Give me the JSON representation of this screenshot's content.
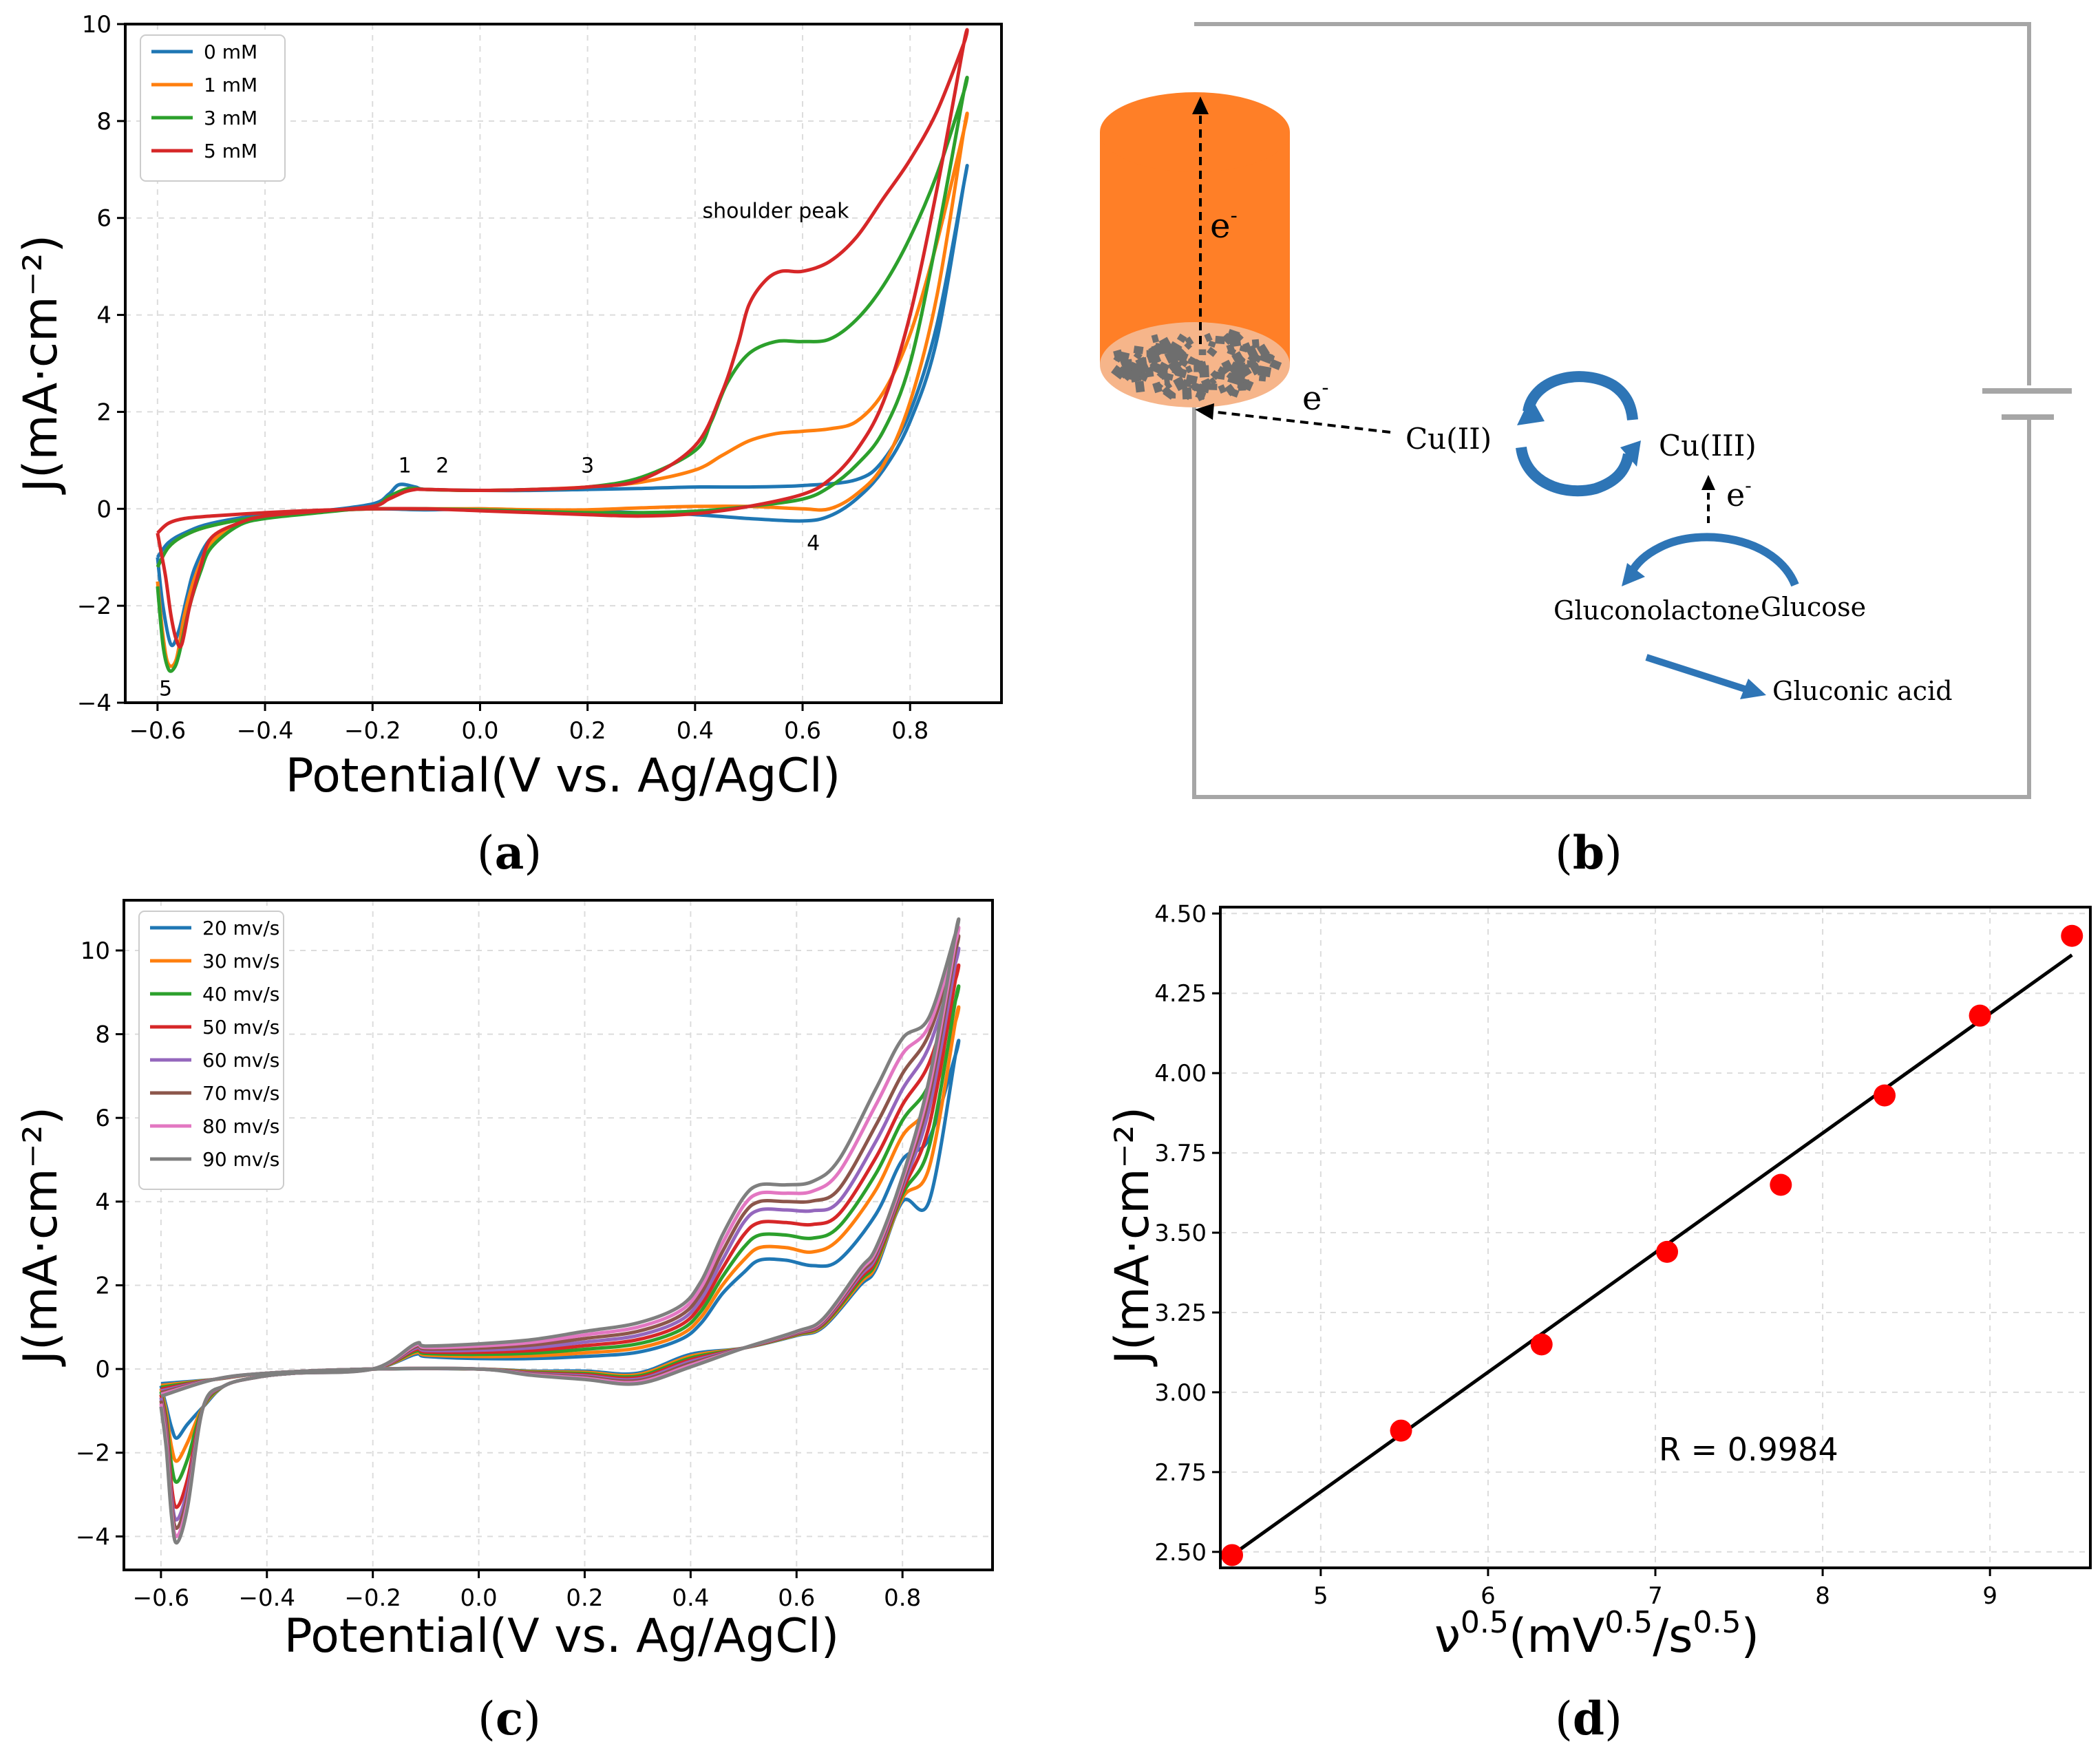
{
  "panel_labels": {
    "a": {
      "open": "(",
      "letter": "a",
      "close": ")"
    },
    "b": {
      "open": "(",
      "letter": "b",
      "close": ")"
    },
    "c": {
      "open": "(",
      "letter": "c",
      "close": ")"
    },
    "d": {
      "open": "(",
      "letter": "d",
      "close": ")"
    }
  },
  "chart_data": [
    {
      "id": "a",
      "type": "line",
      "xlabel": "Potential(V vs. Ag/AgCl)",
      "ylabel": "J(mA·cm⁻²)",
      "xlim": [
        -0.66,
        0.97
      ],
      "ylim": [
        -4.0,
        10.0
      ],
      "xticks": [
        -0.6,
        -0.4,
        -0.2,
        0.0,
        0.2,
        0.4,
        0.6,
        0.8
      ],
      "xtick_labels": [
        "−0.6",
        "−0.4",
        "−0.2",
        "0.0",
        "0.2",
        "0.4",
        "0.6",
        "0.8"
      ],
      "yticks": [
        -4,
        -2,
        0,
        2,
        4,
        6,
        8,
        10
      ],
      "ytick_labels": [
        "−4",
        "−2",
        "0",
        "2",
        "4",
        "6",
        "8",
        "10"
      ],
      "grid": true,
      "legend": "top-left",
      "series": [
        {
          "name": "0 mM",
          "color": "#1f77b4",
          "x": [
            -0.6,
            -0.59,
            -0.575,
            -0.56,
            -0.545,
            -0.53,
            -0.5,
            -0.45,
            -0.4,
            -0.3,
            -0.2,
            -0.17,
            -0.15,
            -0.12,
            -0.1,
            0.0,
            0.1,
            0.2,
            0.3,
            0.4,
            0.5,
            0.6,
            0.7,
            0.75,
            0.8,
            0.85,
            0.9,
            0.9,
            0.85,
            0.8,
            0.75,
            0.7,
            0.65,
            0.6,
            0.5,
            0.4,
            0.3,
            0.2,
            0.1,
            0.0,
            -0.1,
            -0.2,
            -0.3,
            -0.4,
            -0.5,
            -0.55,
            -0.58,
            -0.6
          ],
          "y": [
            -1.0,
            -2.0,
            -2.8,
            -2.5,
            -1.8,
            -1.2,
            -0.6,
            -0.3,
            -0.15,
            -0.05,
            0.1,
            0.3,
            0.5,
            0.45,
            0.4,
            0.38,
            0.38,
            0.4,
            0.42,
            0.45,
            0.45,
            0.48,
            0.6,
            1.0,
            2.0,
            3.8,
            6.7,
            6.7,
            3.5,
            1.8,
            0.8,
            0.2,
            -0.15,
            -0.25,
            -0.2,
            -0.12,
            -0.08,
            -0.05,
            -0.03,
            0.0,
            -0.02,
            0.0,
            -0.05,
            -0.12,
            -0.3,
            -0.5,
            -0.7,
            -1.0
          ]
        },
        {
          "name": "1 mM",
          "color": "#ff7f0e",
          "x": [
            -0.6,
            -0.59,
            -0.58,
            -0.565,
            -0.55,
            -0.53,
            -0.5,
            -0.45,
            -0.4,
            -0.3,
            -0.2,
            -0.17,
            -0.14,
            -0.12,
            -0.1,
            0.0,
            0.1,
            0.2,
            0.3,
            0.4,
            0.45,
            0.5,
            0.55,
            0.6,
            0.65,
            0.7,
            0.75,
            0.8,
            0.85,
            0.9,
            0.9,
            0.85,
            0.8,
            0.75,
            0.7,
            0.65,
            0.6,
            0.5,
            0.4,
            0.3,
            0.2,
            0.1,
            0.0,
            -0.1,
            -0.2,
            -0.3,
            -0.4,
            -0.5,
            -0.55,
            -0.58,
            -0.6
          ],
          "y": [
            -1.5,
            -2.6,
            -3.2,
            -3.1,
            -2.2,
            -1.4,
            -0.7,
            -0.3,
            -0.15,
            -0.05,
            0.05,
            0.25,
            0.4,
            0.42,
            0.4,
            0.38,
            0.4,
            0.45,
            0.55,
            0.8,
            1.1,
            1.4,
            1.55,
            1.6,
            1.65,
            1.8,
            2.4,
            3.6,
            5.5,
            7.8,
            7.8,
            4.4,
            2.2,
            0.9,
            0.3,
            0.0,
            0.0,
            0.05,
            0.05,
            0.02,
            -0.02,
            -0.02,
            0.0,
            0.0,
            0.0,
            -0.05,
            -0.15,
            -0.35,
            -0.55,
            -0.8,
            -1.2
          ]
        },
        {
          "name": "3 mM",
          "color": "#2ca02c",
          "x": [
            -0.6,
            -0.59,
            -0.58,
            -0.57,
            -0.56,
            -0.54,
            -0.52,
            -0.5,
            -0.45,
            -0.4,
            -0.3,
            -0.2,
            -0.17,
            -0.14,
            -0.12,
            -0.1,
            0.0,
            0.1,
            0.2,
            0.3,
            0.4,
            0.43,
            0.46,
            0.5,
            0.55,
            0.6,
            0.65,
            0.7,
            0.75,
            0.8,
            0.85,
            0.9,
            0.9,
            0.85,
            0.8,
            0.75,
            0.7,
            0.65,
            0.6,
            0.5,
            0.4,
            0.3,
            0.2,
            0.1,
            0.0,
            -0.1,
            -0.2,
            -0.3,
            -0.4,
            -0.5,
            -0.55,
            -0.58,
            -0.6
          ],
          "y": [
            -1.6,
            -2.8,
            -3.3,
            -3.3,
            -3.0,
            -2.0,
            -1.3,
            -0.8,
            -0.35,
            -0.2,
            -0.08,
            0.05,
            0.25,
            0.4,
            0.42,
            0.4,
            0.38,
            0.4,
            0.45,
            0.65,
            1.2,
            1.8,
            2.6,
            3.2,
            3.45,
            3.45,
            3.5,
            3.9,
            4.6,
            5.6,
            6.9,
            8.6,
            8.6,
            5.6,
            3.0,
            1.6,
            0.9,
            0.45,
            0.2,
            0.05,
            -0.05,
            -0.08,
            -0.08,
            -0.05,
            -0.02,
            0.0,
            0.0,
            -0.05,
            -0.15,
            -0.35,
            -0.55,
            -0.8,
            -1.2
          ]
        },
        {
          "name": "5 mM",
          "color": "#d62728",
          "x": [
            -0.6,
            -0.595,
            -0.585,
            -0.575,
            -0.565,
            -0.555,
            -0.54,
            -0.52,
            -0.5,
            -0.45,
            -0.4,
            -0.3,
            -0.2,
            -0.17,
            -0.14,
            -0.12,
            -0.1,
            0.0,
            0.1,
            0.2,
            0.3,
            0.4,
            0.45,
            0.48,
            0.5,
            0.53,
            0.56,
            0.6,
            0.65,
            0.7,
            0.75,
            0.8,
            0.85,
            0.9,
            0.9,
            0.85,
            0.8,
            0.75,
            0.7,
            0.65,
            0.6,
            0.5,
            0.4,
            0.3,
            0.2,
            0.1,
            0.0,
            -0.1,
            -0.2,
            -0.3,
            -0.4,
            -0.5,
            -0.55,
            -0.58,
            -0.6
          ],
          "y": [
            -0.5,
            -0.8,
            -1.4,
            -2.2,
            -2.7,
            -2.8,
            -2.0,
            -1.2,
            -0.6,
            -0.3,
            -0.15,
            -0.05,
            0.05,
            0.2,
            0.35,
            0.4,
            0.4,
            0.38,
            0.4,
            0.45,
            0.6,
            1.3,
            2.4,
            3.4,
            4.2,
            4.7,
            4.9,
            4.9,
            5.1,
            5.6,
            6.4,
            7.2,
            8.2,
            9.6,
            9.6,
            6.6,
            4.0,
            2.2,
            1.2,
            0.6,
            0.3,
            0.05,
            -0.1,
            -0.15,
            -0.12,
            -0.08,
            -0.04,
            0.0,
            0.0,
            -0.03,
            -0.08,
            -0.15,
            -0.2,
            -0.3,
            -0.5
          ]
        }
      ],
      "annotations": [
        {
          "text": "shoulder peak",
          "x": 0.55,
          "y": 6.0
        },
        {
          "text": "1",
          "x": -0.14,
          "y": 0.75
        },
        {
          "text": "2",
          "x": -0.07,
          "y": 0.75
        },
        {
          "text": "3",
          "x": 0.2,
          "y": 0.75
        },
        {
          "text": "4",
          "x": 0.62,
          "y": -0.85
        },
        {
          "text": "5",
          "x": -0.585,
          "y": -3.85
        }
      ]
    },
    {
      "id": "c",
      "type": "line",
      "xlabel": "Potential(V vs. Ag/AgCl)",
      "ylabel": "J(mA·cm⁻²)",
      "xlim": [
        -0.67,
        0.97
      ],
      "ylim": [
        -4.8,
        11.2
      ],
      "xticks": [
        -0.6,
        -0.4,
        -0.2,
        0.0,
        0.2,
        0.4,
        0.6,
        0.8
      ],
      "xtick_labels": [
        "−0.6",
        "−0.4",
        "−0.2",
        "0.0",
        "0.2",
        "0.4",
        "0.6",
        "0.8"
      ],
      "yticks": [
        -4,
        -2,
        0,
        2,
        4,
        6,
        8,
        10
      ],
      "ytick_labels": [
        "−4",
        "−2",
        "0",
        "2",
        "4",
        "6",
        "8",
        "10"
      ],
      "grid": true,
      "legend": "top-left",
      "series": [
        {
          "name": "20 mv/s",
          "color": "#1f77b4",
          "peak": 2.6,
          "trough": -1.65,
          "top": 7.5,
          "ret_peak": 2.5
        },
        {
          "name": "30 mv/s",
          "color": "#ff7f0e",
          "peak": 2.9,
          "trough": -2.2,
          "top": 8.3,
          "ret_peak": 3.0
        },
        {
          "name": "40 mv/s",
          "color": "#2ca02c",
          "peak": 3.2,
          "trough": -2.7,
          "top": 8.8,
          "ret_peak": 3.3
        },
        {
          "name": "50 mv/s",
          "color": "#d62728",
          "peak": 3.5,
          "trough": -3.3,
          "top": 9.3,
          "ret_peak": 3.6
        },
        {
          "name": "60 mv/s",
          "color": "#9467bd",
          "peak": 3.8,
          "trough": -3.6,
          "top": 9.7,
          "ret_peak": 3.9
        },
        {
          "name": "70 mv/s",
          "color": "#8c564b",
          "peak": 4.0,
          "trough": -3.8,
          "top": 10.0,
          "ret_peak": 4.2
        },
        {
          "name": "80 mv/s",
          "color": "#e377c2",
          "peak": 4.2,
          "trough": -4.0,
          "top": 10.2,
          "ret_peak": 4.6
        },
        {
          "name": "90 mv/s",
          "color": "#7f7f7f",
          "peak": 4.4,
          "trough": -4.15,
          "top": 10.4,
          "ret_peak": 4.9
        }
      ]
    },
    {
      "id": "d",
      "type": "scatter",
      "xlabel": "ν⁰⋅⁵(mV⁰⋅⁵/s⁰⋅⁵)",
      "xlabel_parts": {
        "base": "ν",
        "exp": "0.5",
        "open": "(mV",
        "exp2": "0.5",
        "mid": "/s",
        "exp3": "0.5",
        "close": ")"
      },
      "ylabel": "J(mA·cm⁻²)",
      "xlim": [
        4.4,
        9.6
      ],
      "ylim": [
        2.45,
        4.52
      ],
      "xticks": [
        5,
        6,
        7,
        8,
        9
      ],
      "xtick_labels": [
        "5",
        "6",
        "7",
        "8",
        "9"
      ],
      "yticks": [
        2.5,
        2.75,
        3.0,
        3.25,
        3.5,
        3.75,
        4.0,
        4.25,
        4.5
      ],
      "ytick_labels": [
        "2.50",
        "2.75",
        "3.00",
        "3.25",
        "3.50",
        "3.75",
        "4.00",
        "4.25",
        "4.50"
      ],
      "grid": true,
      "points": {
        "x": [
          4.47,
          5.48,
          6.32,
          7.07,
          7.75,
          8.37,
          8.94,
          9.49
        ],
        "y": [
          2.49,
          2.88,
          3.15,
          3.44,
          3.65,
          3.93,
          4.18,
          4.43
        ],
        "color": "#ff0000"
      },
      "fit": {
        "x": [
          4.47,
          9.49
        ],
        "y": [
          2.49,
          4.37
        ],
        "color": "#000000"
      },
      "annotation": "R = 0.9984"
    }
  ],
  "schematic": {
    "id": "b",
    "labels": {
      "e_top": "e",
      "e_top_sup": "-",
      "e_mid": "e",
      "e_mid_sup": "-",
      "cu2": "Cu(II)",
      "cu3": "Cu(III)",
      "e_small": "e",
      "e_small_sup": "-",
      "gluconolactone": "Gluconolactone",
      "glucose": "Glucose",
      "gluconic_acid": "Gluconic acid"
    },
    "colors": {
      "electrode": "#ff7f27",
      "electrode_base": "#f6b58a",
      "particles": "#6e6e6e",
      "arrow_blue": "#2e75b6",
      "circuit": "#a6a6a6"
    }
  }
}
